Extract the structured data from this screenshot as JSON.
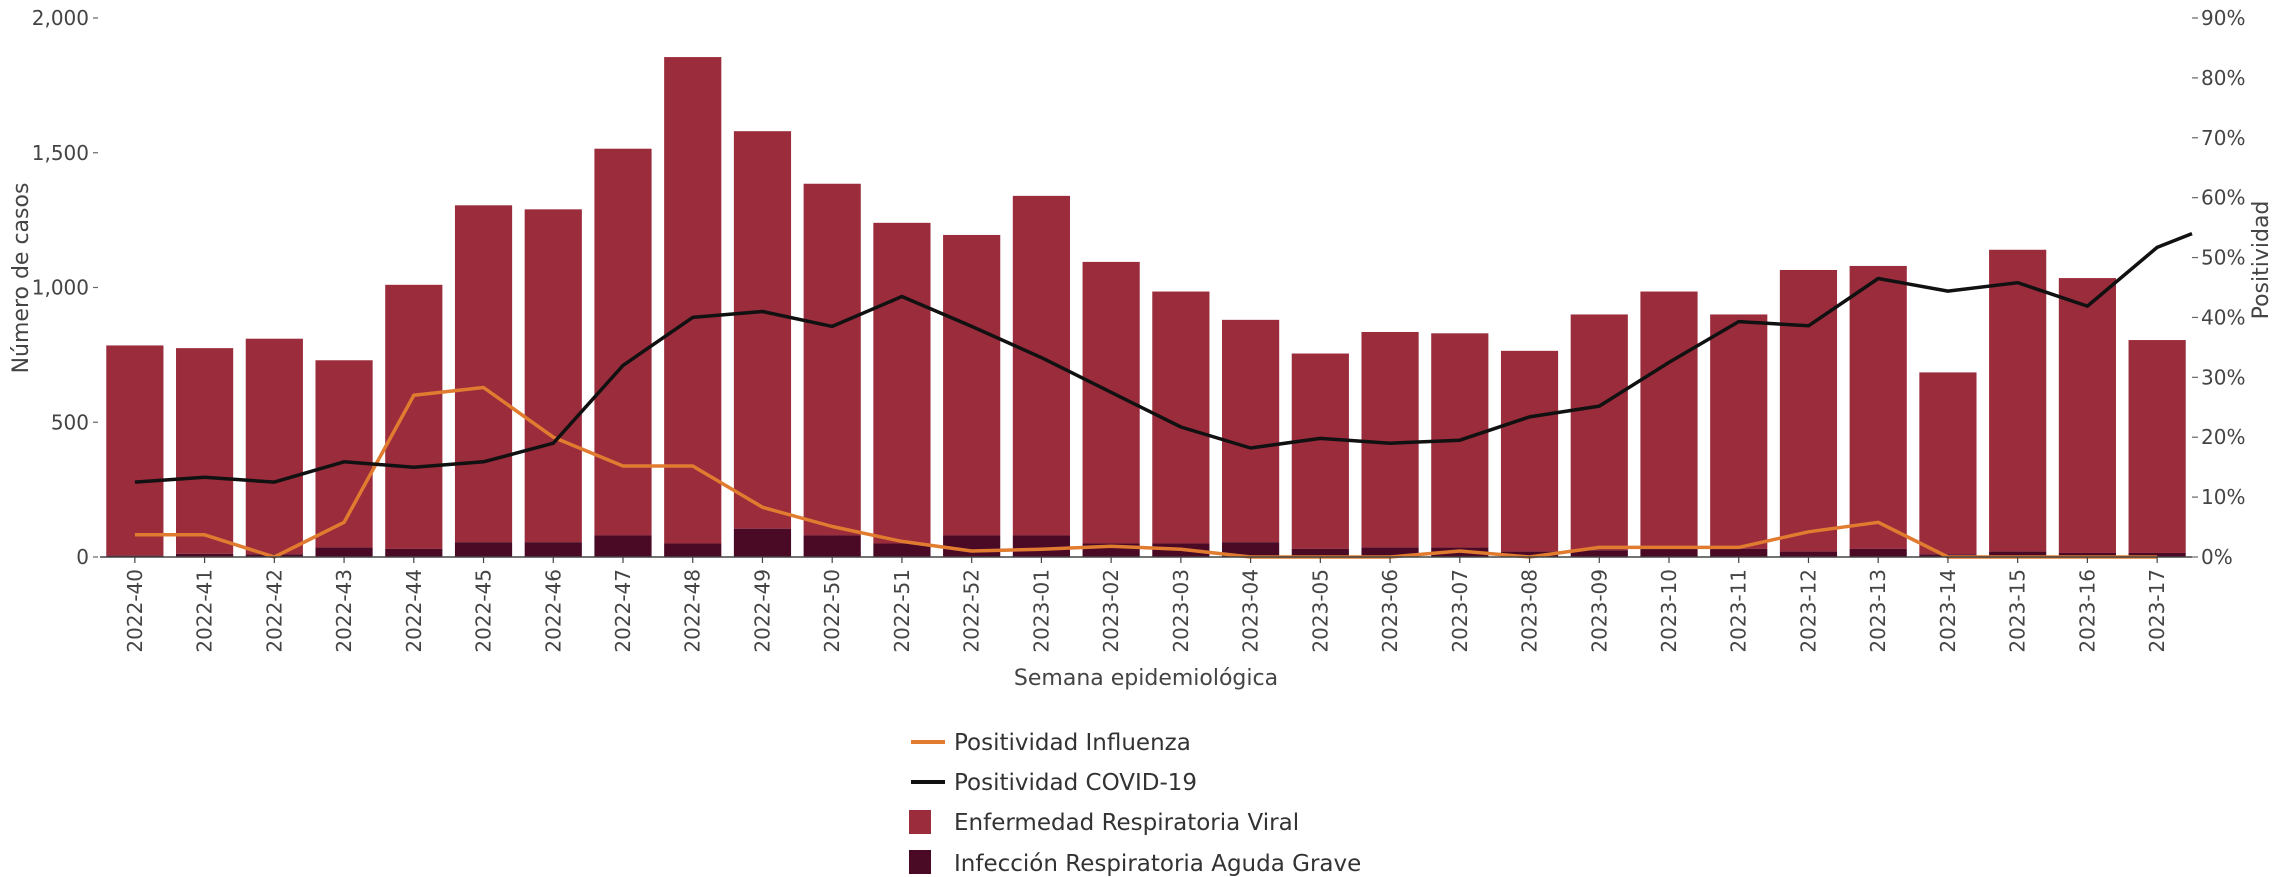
{
  "chart_data": {
    "type": "bar",
    "categories": [
      "2022-40",
      "2022-41",
      "2022-42",
      "2022-43",
      "2022-44",
      "2022-45",
      "2022-46",
      "2022-47",
      "2022-48",
      "2022-49",
      "2022-50",
      "2022-51",
      "2022-52",
      "2023-01",
      "2023-02",
      "2023-03",
      "2023-04",
      "2023-05",
      "2023-06",
      "2023-07",
      "2023-08",
      "2023-09",
      "2023-10",
      "2023-11",
      "2023-12",
      "2023-13",
      "2023-14",
      "2023-15",
      "2023-16",
      "2023-17"
    ],
    "xlabel": "Semana epidemiológica",
    "ylabel": "Número de casos",
    "y2label": "Positividad",
    "ylim": [
      0,
      2000
    ],
    "y2lim": [
      0,
      90
    ],
    "yticks": [
      "0",
      "500",
      "1,000",
      "1,500",
      "2,000"
    ],
    "y2ticks": [
      "0%",
      "10%",
      "20%",
      "30%",
      "40%",
      "50%",
      "60%",
      "70%",
      "80%",
      "90%"
    ],
    "legend_position": "bottom-center",
    "bar_series": [
      {
        "name": "Enfermedad Respiratoria Viral",
        "color": "#9b2c3c",
        "values": [
          785,
          775,
          810,
          730,
          1010,
          1305,
          1290,
          1515,
          1855,
          1580,
          1385,
          1240,
          1195,
          1340,
          1095,
          985,
          880,
          755,
          835,
          830,
          765,
          900,
          985,
          900,
          1065,
          1080,
          685,
          1140,
          1035,
          805
        ]
      },
      {
        "name": "Infección Respiratoria Aguda Grave",
        "color": "#4a0a26",
        "values": [
          5,
          12,
          10,
          35,
          30,
          55,
          55,
          80,
          50,
          105,
          80,
          50,
          80,
          80,
          50,
          50,
          55,
          30,
          35,
          35,
          20,
          25,
          30,
          30,
          20,
          30,
          10,
          20,
          15,
          15
        ]
      }
    ],
    "line_series": [
      {
        "name": "Positividad Influenza",
        "color": "#e07b30",
        "values": [
          3.7,
          3.7,
          0,
          5.8,
          27,
          28.3,
          20,
          15.2,
          15.2,
          8.3,
          5.1,
          2.6,
          1,
          1.3,
          1.8,
          1.3,
          0,
          0,
          0,
          1,
          0,
          1.6,
          1.6,
          1.6,
          4.2,
          5.8,
          0,
          0,
          0,
          0
        ]
      },
      {
        "name": "Positividad COVID-19",
        "color": "#111111",
        "values": [
          12.5,
          13.3,
          12.5,
          15.9,
          15,
          15.9,
          19,
          32,
          40,
          41,
          38.5,
          43.5,
          38.5,
          33.3,
          27.5,
          21.7,
          18.2,
          19.8,
          19,
          19.5,
          23.4,
          25.2,
          32.5,
          39.3,
          38.6,
          46.5,
          44.4,
          45.8,
          41.9,
          51.7
        ]
      }
    ],
    "line_end": {
      "COVID-19": 54
    }
  }
}
